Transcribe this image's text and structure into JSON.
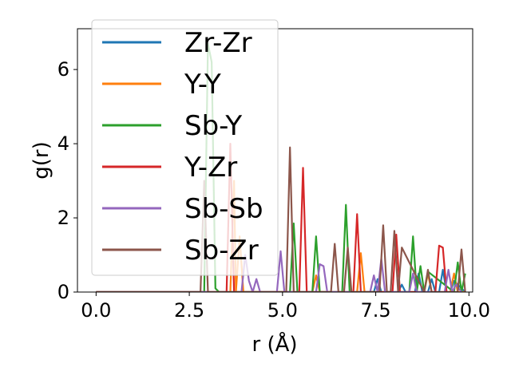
{
  "chart_data": {
    "type": "line",
    "title": "",
    "xlabel": "r (Å)",
    "ylabel": "g(r)",
    "xlim": [
      -0.5,
      10.1
    ],
    "ylim": [
      0,
      7.1
    ],
    "xticks": [
      0.0,
      2.5,
      5.0,
      7.5,
      10.0
    ],
    "xtick_labels": [
      "0.0",
      "2.5",
      "5.0",
      "7.5",
      "10.0"
    ],
    "yticks": [
      0,
      2,
      4,
      6
    ],
    "ytick_labels": [
      "0",
      "2",
      "4",
      "6"
    ],
    "grid": false,
    "legend": {
      "placement": "upper-left"
    },
    "series": [
      {
        "name": "Zr-Zr",
        "color": "#1f77b4",
        "x": [
          0,
          2.8,
          7.45,
          7.55,
          7.65,
          8.1,
          8.2,
          8.3,
          8.55,
          8.65,
          8.75,
          8.9,
          9.0,
          9.1,
          9.2,
          9.3,
          9.4,
          9.5,
          9.6,
          9.9
        ],
        "y": [
          0,
          0,
          0,
          0.35,
          0,
          0,
          0.2,
          0,
          0,
          0.5,
          0,
          0,
          0.35,
          0,
          0,
          0.6,
          0,
          0,
          0.3,
          0
        ]
      },
      {
        "name": "Y-Y",
        "color": "#ff7f0e",
        "x": [
          0,
          3.5,
          3.6,
          3.7,
          3.75,
          3.85,
          3.95,
          5.8,
          5.9,
          6.0,
          7.0,
          7.1,
          7.2,
          8.8,
          8.9,
          9.0,
          9.5,
          9.6,
          9.7,
          9.9
        ],
        "y": [
          0,
          0,
          0,
          3.0,
          0,
          1.5,
          0,
          0,
          0.45,
          0,
          0,
          1.05,
          0,
          0,
          0.5,
          0,
          0,
          0.5,
          0,
          0
        ]
      },
      {
        "name": "Sb-Y",
        "color": "#2ca02c",
        "x": [
          0,
          2.9,
          3.0,
          3.1,
          3.2,
          3.3,
          5.2,
          5.3,
          5.4,
          5.8,
          5.9,
          6.0,
          6.6,
          6.7,
          6.8,
          8.4,
          8.5,
          8.6,
          8.7,
          8.8,
          8.9,
          9.6,
          9.7,
          9.8,
          9.9
        ],
        "y": [
          0,
          0,
          6.7,
          6.2,
          0.1,
          0,
          0,
          1.85,
          0,
          0,
          1.5,
          0,
          0,
          2.35,
          0,
          0,
          1.5,
          0,
          0.7,
          0,
          0.55,
          0,
          0.8,
          0,
          0.5
        ]
      },
      {
        "name": "Y-Zr",
        "color": "#d62728",
        "x": [
          0,
          3.4,
          3.5,
          3.6,
          3.7,
          5.45,
          5.55,
          5.65,
          6.9,
          7.0,
          7.1,
          7.95,
          8.05,
          8.15,
          8.95,
          9.1,
          9.2,
          9.3,
          9.4
        ],
        "y": [
          0,
          0,
          0,
          4.0,
          0,
          0,
          3.35,
          0,
          0,
          2.1,
          0,
          0,
          1.55,
          0,
          0,
          0,
          1.25,
          1.2,
          0
        ]
      },
      {
        "name": "Sb-Sb",
        "color": "#9467bd",
        "x": [
          0,
          3.9,
          4.0,
          4.1,
          4.2,
          4.3,
          4.4,
          4.85,
          4.95,
          5.05,
          5.9,
          6.0,
          6.1,
          6.2,
          7.35,
          7.45,
          7.55,
          7.65,
          7.75,
          7.85,
          8.4,
          8.5,
          8.6,
          9.35,
          9.45,
          9.55,
          9.65,
          9.8
        ],
        "y": [
          0,
          0,
          1.0,
          0.3,
          0,
          0.35,
          0,
          0,
          1.1,
          0,
          0,
          0.75,
          0.7,
          0,
          0,
          0.45,
          0,
          0.9,
          0,
          0,
          0,
          0.5,
          0,
          0,
          0.6,
          0,
          0.2,
          0
        ]
      },
      {
        "name": "Sb-Zr",
        "color": "#8c564b",
        "x": [
          0,
          2.8,
          2.9,
          3.0,
          5.1,
          5.2,
          5.3,
          6.3,
          6.4,
          6.5,
          6.65,
          6.75,
          6.85,
          7.6,
          7.7,
          7.8,
          7.9,
          8.0,
          8.1,
          8.2,
          8.8,
          8.9,
          9.0,
          9.7,
          9.8,
          9.9
        ],
        "y": [
          0,
          0,
          3.0,
          0,
          0,
          3.9,
          0,
          0,
          1.3,
          0,
          0,
          1.2,
          0,
          0,
          1.8,
          0,
          0,
          1.65,
          0,
          1.2,
          0,
          0.6,
          0,
          0,
          1.15,
          0
        ]
      }
    ]
  }
}
